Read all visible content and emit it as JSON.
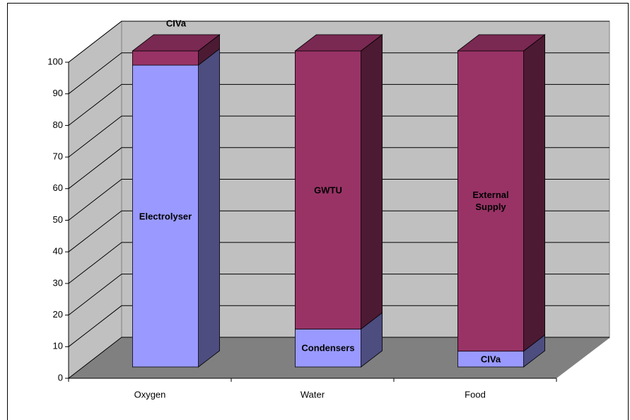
{
  "chart_data": {
    "type": "bar3d_stacked",
    "categories": [
      "Oxygen",
      "Water",
      "Food"
    ],
    "series": [
      {
        "color": "#9999ff",
        "values": [
          95.5,
          12,
          5
        ],
        "labels": [
          "Electrolyser",
          "Condensers",
          "CIVa"
        ]
      },
      {
        "color": "#993366",
        "values": [
          4.5,
          88,
          95
        ],
        "labels": [
          "CIVa",
          "GWTU",
          "External Supply"
        ]
      }
    ],
    "ylim": [
      0,
      100
    ],
    "yticks": [
      0,
      10,
      20,
      30,
      40,
      50,
      60,
      70,
      80,
      90,
      100
    ],
    "grid": true
  }
}
